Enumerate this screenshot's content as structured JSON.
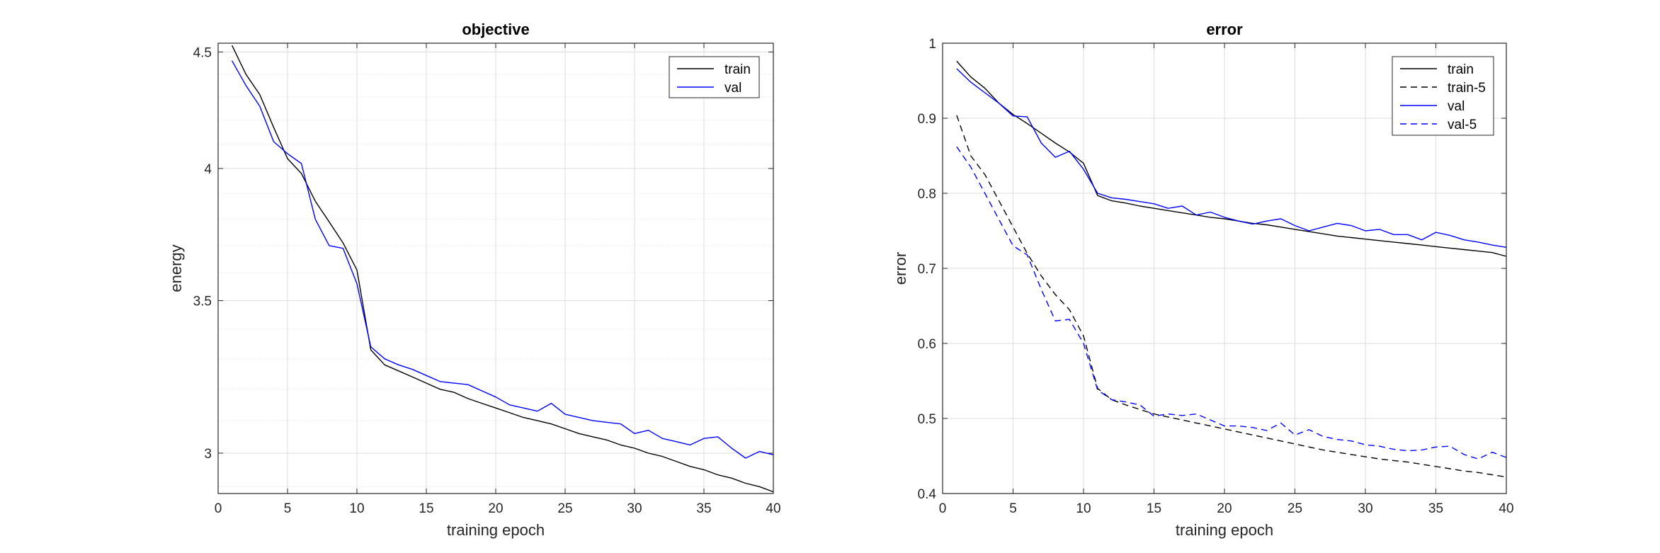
{
  "chart_data": [
    {
      "type": "line",
      "title": "objective",
      "xlabel": "training epoch",
      "ylabel": "energy",
      "xlim": [
        0,
        40
      ],
      "ylim": [
        2.88,
        4.54
      ],
      "y_scale": "log",
      "grid": true,
      "minor_grid": true,
      "legend_position": "top-right",
      "xticks": [
        "0",
        "5",
        "10",
        "15",
        "20",
        "25",
        "30",
        "35",
        "40"
      ],
      "yticks": [
        "3",
        "3.5",
        "4",
        "4.5"
      ],
      "x": [
        1,
        2,
        3,
        4,
        5,
        6,
        7,
        8,
        9,
        10,
        11,
        12,
        13,
        14,
        15,
        16,
        17,
        18,
        19,
        20,
        21,
        22,
        23,
        24,
        25,
        26,
        27,
        28,
        29,
        30,
        31,
        32,
        33,
        34,
        35,
        36,
        37,
        38,
        39,
        40
      ],
      "series": [
        {
          "name": "train",
          "color": "#000000",
          "dash": "solid",
          "values": [
            4.53,
            4.4,
            4.31,
            4.17,
            4.04,
            3.98,
            3.87,
            3.79,
            3.71,
            3.61,
            3.33,
            3.28,
            3.26,
            3.24,
            3.22,
            3.2,
            3.19,
            3.17,
            3.155,
            3.14,
            3.125,
            3.11,
            3.1,
            3.09,
            3.075,
            3.06,
            3.05,
            3.04,
            3.025,
            3.015,
            3.0,
            2.99,
            2.975,
            2.96,
            2.95,
            2.935,
            2.925,
            2.91,
            2.9,
            2.885
          ]
        },
        {
          "name": "val",
          "color": "#0000ff",
          "dash": "solid",
          "values": [
            4.46,
            4.35,
            4.26,
            4.11,
            4.06,
            4.02,
            3.8,
            3.7,
            3.69,
            3.56,
            3.34,
            3.3,
            3.28,
            3.265,
            3.245,
            3.225,
            3.22,
            3.215,
            3.195,
            3.175,
            3.15,
            3.14,
            3.13,
            3.155,
            3.12,
            3.11,
            3.1,
            3.095,
            3.09,
            3.06,
            3.07,
            3.045,
            3.035,
            3.025,
            3.045,
            3.05,
            3.015,
            2.985,
            3.005,
            2.995
          ]
        }
      ]
    },
    {
      "type": "line",
      "title": "error",
      "xlabel": "training epoch",
      "ylabel": "error",
      "xlim": [
        0,
        40
      ],
      "ylim": [
        0.4,
        1
      ],
      "grid": true,
      "legend_position": "top-right",
      "xticks": [
        "0",
        "5",
        "10",
        "15",
        "20",
        "25",
        "30",
        "35",
        "40"
      ],
      "yticks": [
        "0.4",
        "0.5",
        "0.6",
        "0.7",
        "0.8",
        "0.9",
        "1"
      ],
      "x": [
        1,
        2,
        3,
        4,
        5,
        6,
        7,
        8,
        9,
        10,
        11,
        12,
        13,
        14,
        15,
        16,
        17,
        18,
        19,
        20,
        21,
        22,
        23,
        24,
        25,
        26,
        27,
        28,
        29,
        30,
        31,
        32,
        33,
        34,
        35,
        36,
        37,
        38,
        39,
        40
      ],
      "series": [
        {
          "name": "train",
          "color": "#000000",
          "dash": "solid",
          "values": [
            0.976,
            0.955,
            0.94,
            0.92,
            0.905,
            0.893,
            0.88,
            0.867,
            0.855,
            0.84,
            0.797,
            0.79,
            0.787,
            0.783,
            0.78,
            0.777,
            0.774,
            0.771,
            0.768,
            0.766,
            0.763,
            0.76,
            0.758,
            0.755,
            0.752,
            0.749,
            0.746,
            0.743,
            0.741,
            0.739,
            0.737,
            0.735,
            0.733,
            0.731,
            0.729,
            0.727,
            0.725,
            0.723,
            0.721,
            0.716
          ]
        },
        {
          "name": "train-5",
          "color": "#000000",
          "dash": "dashed",
          "values": [
            0.904,
            0.85,
            0.825,
            0.79,
            0.755,
            0.72,
            0.69,
            0.665,
            0.645,
            0.61,
            0.54,
            0.525,
            0.518,
            0.512,
            0.506,
            0.502,
            0.498,
            0.494,
            0.49,
            0.486,
            0.482,
            0.478,
            0.474,
            0.47,
            0.466,
            0.462,
            0.458,
            0.455,
            0.452,
            0.449,
            0.446,
            0.444,
            0.442,
            0.439,
            0.436,
            0.433,
            0.43,
            0.428,
            0.425,
            0.422
          ]
        },
        {
          "name": "val",
          "color": "#0000ff",
          "dash": "solid",
          "values": [
            0.966,
            0.948,
            0.934,
            0.92,
            0.903,
            0.902,
            0.867,
            0.848,
            0.856,
            0.832,
            0.8,
            0.794,
            0.792,
            0.789,
            0.786,
            0.78,
            0.783,
            0.771,
            0.775,
            0.768,
            0.763,
            0.759,
            0.763,
            0.766,
            0.757,
            0.75,
            0.755,
            0.76,
            0.757,
            0.75,
            0.752,
            0.745,
            0.745,
            0.738,
            0.748,
            0.744,
            0.738,
            0.735,
            0.731,
            0.728
          ]
        },
        {
          "name": "val-5",
          "color": "#0000ff",
          "dash": "dashed",
          "values": [
            0.862,
            0.835,
            0.8,
            0.765,
            0.73,
            0.718,
            0.672,
            0.63,
            0.632,
            0.6,
            0.538,
            0.525,
            0.522,
            0.518,
            0.503,
            0.506,
            0.504,
            0.506,
            0.498,
            0.49,
            0.49,
            0.488,
            0.484,
            0.494,
            0.478,
            0.485,
            0.476,
            0.472,
            0.47,
            0.465,
            0.463,
            0.459,
            0.457,
            0.458,
            0.462,
            0.463,
            0.452,
            0.446,
            0.455,
            0.448
          ]
        }
      ]
    }
  ]
}
